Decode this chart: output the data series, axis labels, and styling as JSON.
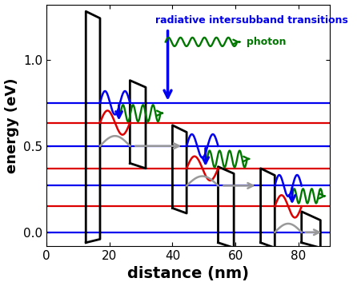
{
  "xlabel": "distance (nm)",
  "ylabel": "energy (eV)",
  "xlim": [
    0,
    90
  ],
  "ylim": [
    -0.08,
    1.32
  ],
  "xticks": [
    0,
    20,
    40,
    60,
    80
  ],
  "yticks": [
    0.0,
    0.5,
    1.0
  ],
  "blue_levels": [
    0.75,
    0.5,
    0.27,
    0.0
  ],
  "red_levels": [
    0.635,
    0.37,
    0.15
  ],
  "annotation_text_1": "radiative intersubband transitions",
  "annotation_text_2": "photon",
  "blue_color": "#0000ee",
  "red_color": "#dd0000",
  "green_color": "#007700",
  "gray_color": "#999999",
  "background_color": "#FFFFFF",
  "figsize": [
    4.46,
    3.58
  ],
  "dpi": 100,
  "barriers": [
    {
      "xl": 12.5,
      "xr": 17.0,
      "ebl": -0.06,
      "ebr": -0.04,
      "etl": 1.28,
      "etr": 1.24
    },
    {
      "xl": 26.5,
      "xr": 31.5,
      "ebl": 0.4,
      "ebr": 0.37,
      "etl": 0.88,
      "etr": 0.84
    },
    {
      "xl": 40.0,
      "xr": 44.5,
      "ebl": 0.14,
      "ebr": 0.11,
      "etl": 0.62,
      "etr": 0.58
    },
    {
      "xl": 54.5,
      "xr": 59.5,
      "ebl": -0.06,
      "ebr": -0.09,
      "etl": 0.38,
      "etr": 0.34
    },
    {
      "xl": 68.0,
      "xr": 72.5,
      "ebl": -0.06,
      "ebr": -0.09,
      "etl": 0.37,
      "etr": 0.33
    },
    {
      "xl": 81.0,
      "xr": 87.0,
      "ebl": -0.06,
      "ebr": -0.09,
      "etl": 0.12,
      "etr": 0.07
    }
  ]
}
